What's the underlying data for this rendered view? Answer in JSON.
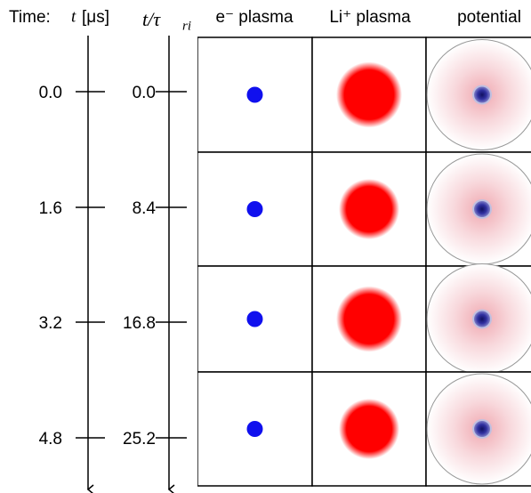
{
  "header": {
    "time_prefix": "Time:",
    "time_symbol": "t",
    "time_unit": "[μs]",
    "ratio_label": "t/τ",
    "ratio_sub": "ri",
    "columns": [
      "e⁻ plasma",
      "Li⁺ plasma",
      "potential"
    ]
  },
  "rows": [
    {
      "time": "0.0",
      "ratio": "0.0"
    },
    {
      "time": "1.6",
      "ratio": "8.4"
    },
    {
      "time": "3.2",
      "ratio": "16.8"
    },
    {
      "time": "4.8",
      "ratio": "25.2"
    }
  ]
}
